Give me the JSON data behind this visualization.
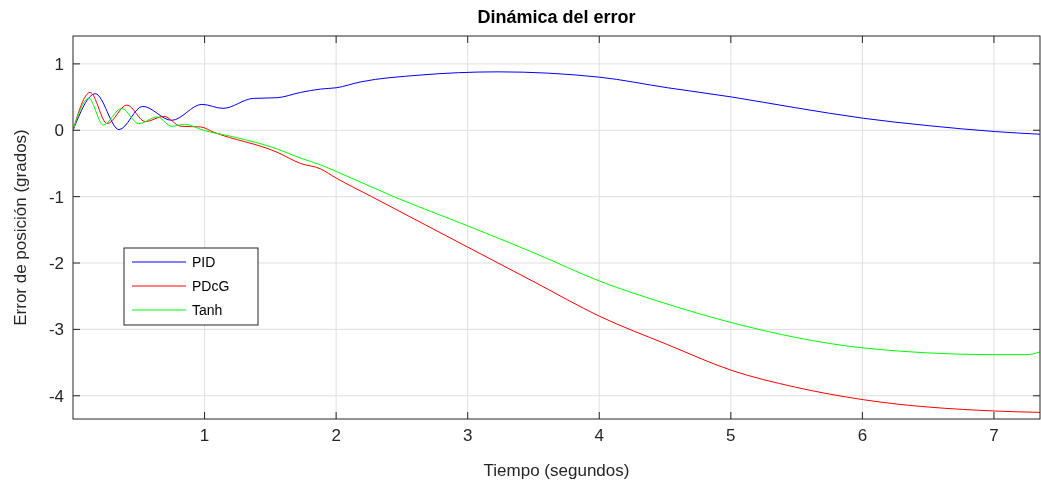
{
  "chart_data": {
    "type": "line",
    "title": "Dinámica del error",
    "xlabel": "Tiempo (segundos)",
    "ylabel": "Error de posición (grados)",
    "xlim": [
      0,
      7.35
    ],
    "ylim": [
      -4.35,
      1.42
    ],
    "xticks": [
      1,
      2,
      3,
      4,
      5,
      6,
      7
    ],
    "yticks": [
      -4,
      -3,
      -2,
      -1,
      0,
      1
    ],
    "grid": true,
    "legend": "left",
    "line_style": "solid",
    "marker": "none",
    "series": [
      {
        "name": "PID",
        "color": "#0000ff",
        "x": [
          0,
          0.17,
          0.35,
          0.53,
          0.75,
          0.98,
          1.14,
          1.37,
          1.55,
          1.73,
          1.88,
          2.0,
          2.19,
          2.63,
          3.23,
          4.0,
          4.52,
          5.01,
          5.49,
          6.01,
          6.5,
          7.01,
          7.35
        ],
        "values": [
          0,
          0.55,
          0.01,
          0.36,
          0.15,
          0.39,
          0.33,
          0.48,
          0.49,
          0.57,
          0.62,
          0.64,
          0.73,
          0.83,
          0.88,
          0.8,
          0.64,
          0.5,
          0.34,
          0.18,
          0.07,
          -0.02,
          -0.06
        ]
      },
      {
        "name": "PDcG",
        "color": "#ff0000",
        "x": [
          0,
          0.13,
          0.26,
          0.41,
          0.55,
          0.69,
          0.82,
          0.97,
          1.07,
          1.55,
          1.73,
          1.88,
          2.0,
          2.27,
          3.0,
          3.52,
          4.0,
          4.52,
          5.01,
          5.49,
          6.01,
          7.01,
          7.35
        ],
        "values": [
          0,
          0.57,
          0.1,
          0.38,
          0.13,
          0.21,
          0.06,
          0.05,
          -0.03,
          -0.33,
          -0.5,
          -0.58,
          -0.72,
          -1.0,
          -1.76,
          -2.3,
          -2.8,
          -3.23,
          -3.62,
          -3.87,
          -4.06,
          -4.23,
          -4.25
        ]
      },
      {
        "name": "Tanh",
        "color": "#00ff00",
        "x": [
          0,
          0.12,
          0.23,
          0.37,
          0.5,
          0.64,
          0.75,
          0.85,
          0.99,
          1.22,
          1.55,
          1.73,
          1.88,
          2.0,
          2.45,
          3.0,
          3.52,
          4.0,
          4.52,
          5.01,
          5.49,
          6.01,
          7.01,
          7.25,
          7.35
        ],
        "values": [
          0,
          0.48,
          0.08,
          0.33,
          0.1,
          0.2,
          0.06,
          0.09,
          0,
          -0.1,
          -0.28,
          -0.42,
          -0.52,
          -0.62,
          -1.01,
          -1.44,
          -1.86,
          -2.27,
          -2.62,
          -2.9,
          -3.12,
          -3.28,
          -3.38,
          -3.38,
          -3.34
        ]
      }
    ]
  }
}
